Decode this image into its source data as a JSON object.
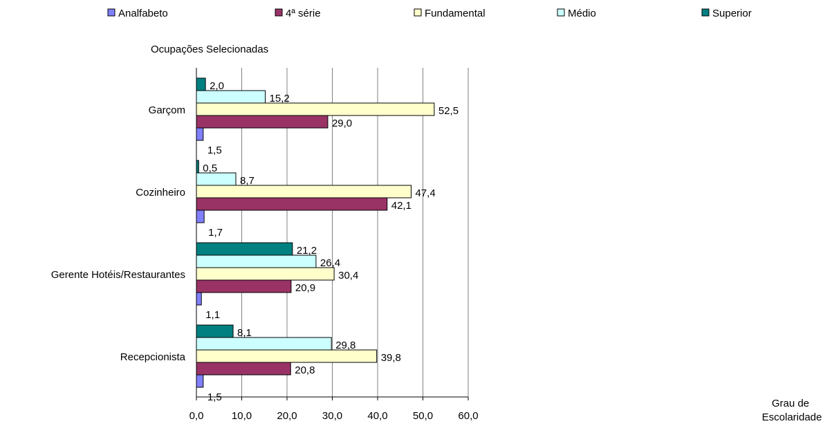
{
  "chart_data": {
    "type": "bar",
    "orientation": "horizontal",
    "title": "",
    "ylabel": "Ocupações Selecionadas",
    "xlabel": "Grau de Escolaridade",
    "xlim": [
      0,
      60
    ],
    "x_ticks": [
      "0,0",
      "10,0",
      "20,0",
      "30,0",
      "40,0",
      "50,0",
      "60,0"
    ],
    "grid": "vertical",
    "legend_position": "top",
    "categories": [
      "Garçom",
      "Cozinheiro",
      "Gerente Hotéis/Restaurantes",
      "Recepcionista"
    ],
    "series": [
      {
        "name": "Analfabeto",
        "color": "#8080ff",
        "values": [
          1.5,
          1.7,
          1.1,
          1.5
        ],
        "labels": [
          "1,5",
          "1,7",
          "1,1",
          "1,5"
        ]
      },
      {
        "name": "4ª série",
        "color": "#993366",
        "values": [
          29.0,
          42.1,
          20.9,
          20.8
        ],
        "labels": [
          "29,0",
          "42,1",
          "20,9",
          "20,8"
        ]
      },
      {
        "name": "Fundamental",
        "color": "#ffffcc",
        "values": [
          52.5,
          47.4,
          30.4,
          39.8
        ],
        "labels": [
          "52,5",
          "47,4",
          "30,4",
          "39,8"
        ]
      },
      {
        "name": "Médio",
        "color": "#ccffff",
        "values": [
          15.2,
          8.7,
          26.4,
          29.8
        ],
        "labels": [
          "15,2",
          "8,7",
          "26,4",
          "29,8"
        ]
      },
      {
        "name": "Superior",
        "color": "#008080",
        "values": [
          2.0,
          0.5,
          21.2,
          8.1
        ],
        "labels": [
          "2,0",
          "0,5",
          "21,2",
          "8,1"
        ]
      }
    ]
  }
}
